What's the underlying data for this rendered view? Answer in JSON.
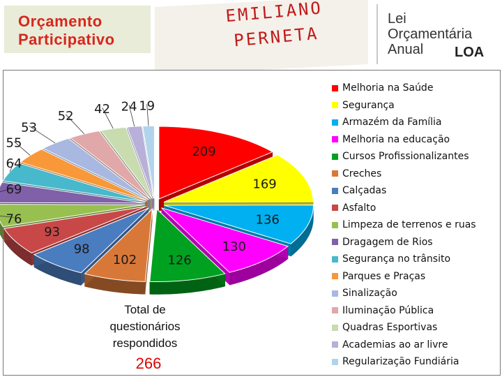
{
  "header": {
    "logo_left_line1": "Orçamento",
    "logo_left_line2": "Participativo",
    "title_line1": "EMILIANO",
    "title_line2": "PERNETA",
    "logo_right_line1": "Lei",
    "logo_right_line2": "Orçamentária",
    "logo_right_line3": "Anual",
    "logo_right_badge": "LOA"
  },
  "total": {
    "label": "Total de questionários respondidos",
    "value": "266"
  },
  "chart_data": {
    "type": "pie",
    "title": "",
    "categories": [
      "Melhoria na Saúde",
      "Segurança",
      "Armazém da Família",
      "Melhoria na educação",
      "Cursos Profissionalizantes",
      "Creches",
      "Calçadas",
      "Asfalto",
      "Limpeza de terrenos e ruas",
      "Dragagem de Rios",
      "Segurança no trânsito",
      "Parques e Praças",
      "Sinalização",
      "Iluminação Pública",
      "Quadras Esportivas",
      "Academias ao ar livre",
      "Regularização Fundiária"
    ],
    "values": [
      209,
      169,
      136,
      130,
      126,
      102,
      98,
      93,
      76,
      69,
      64,
      55,
      53,
      52,
      42,
      24,
      19
    ],
    "colors": [
      "#ff0000",
      "#ffff00",
      "#00b0f0",
      "#ff00ff",
      "#00a020",
      "#d87838",
      "#4a7cc0",
      "#c84848",
      "#98c050",
      "#8060a8",
      "#48b8cc",
      "#f89838",
      "#a8b8e0",
      "#e0a8a8",
      "#c8dcb0",
      "#b8b0d8",
      "#b0d4ec"
    ],
    "legend_position": "right"
  }
}
